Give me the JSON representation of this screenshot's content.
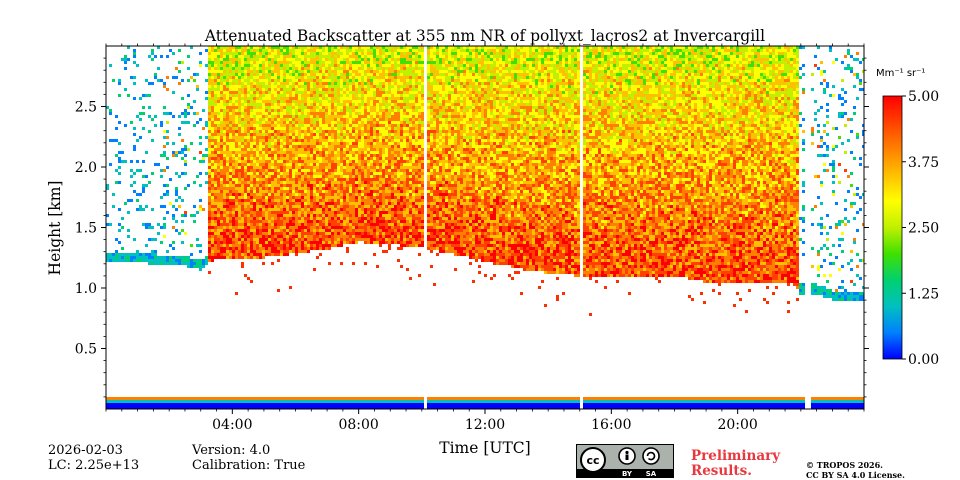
{
  "chart_data": {
    "type": "heatmap",
    "title": "Attenuated Backscatter at 355 nm NR of pollyxt_lacros2 at Invercargill",
    "xlabel": "Time [UTC]",
    "ylabel": "Height [km]",
    "x_unit": "hours UTC",
    "xlim": [
      0,
      24
    ],
    "ylim": [
      0,
      3
    ],
    "x_ticks": [
      {
        "value": 4,
        "label": "04:00"
      },
      {
        "value": 8,
        "label": "08:00"
      },
      {
        "value": 12,
        "label": "12:00"
      },
      {
        "value": 16,
        "label": "16:00"
      },
      {
        "value": 20,
        "label": "20:00"
      }
    ],
    "y_ticks": [
      {
        "value": 0.5,
        "label": "0.5"
      },
      {
        "value": 1.0,
        "label": "1.0"
      },
      {
        "value": 1.5,
        "label": "1.5"
      },
      {
        "value": 2.0,
        "label": "2.0"
      },
      {
        "value": 2.5,
        "label": "2.5"
      }
    ],
    "colorbar": {
      "unit_label": "Mm⁻¹ sr⁻¹",
      "range": [
        0,
        5
      ],
      "ticks": [
        {
          "value": 0,
          "label": "0.00"
        },
        {
          "value": 1.25,
          "label": "1.25"
        },
        {
          "value": 2.5,
          "label": "2.50"
        },
        {
          "value": 3.75,
          "label": "3.75"
        },
        {
          "value": 5,
          "label": "5.00"
        }
      ],
      "colormap": [
        "#0000ff",
        "#0080ff",
        "#00c0c0",
        "#00d070",
        "#40e000",
        "#c0f000",
        "#ffff00",
        "#ffc000",
        "#ff8000",
        "#ff4000",
        "#ff0000"
      ]
    },
    "no_data_gaps_hours": [
      [
        10.05,
        10.15
      ],
      [
        15.0,
        15.1
      ],
      [
        22.15,
        22.3
      ]
    ],
    "signal_base_km": [
      [
        0,
        1.22
      ],
      [
        1.5,
        1.2
      ],
      [
        2.5,
        1.18
      ],
      [
        3.0,
        1.15
      ],
      [
        3.5,
        1.25
      ],
      [
        5,
        1.25
      ],
      [
        7,
        1.32
      ],
      [
        8,
        1.38
      ],
      [
        9,
        1.36
      ],
      [
        10,
        1.33
      ],
      [
        11,
        1.28
      ],
      [
        12,
        1.22
      ],
      [
        13,
        1.17
      ],
      [
        14,
        1.12
      ],
      [
        15,
        1.1
      ],
      [
        16,
        1.08
      ],
      [
        17,
        1.1
      ],
      [
        18,
        1.1
      ],
      [
        19,
        1.05
      ],
      [
        20,
        1.03
      ],
      [
        21,
        1.03
      ],
      [
        21.7,
        1.05
      ],
      [
        22,
        0.95
      ],
      [
        22.5,
        0.95
      ],
      [
        23,
        0.9
      ],
      [
        24,
        0.88
      ]
    ],
    "low_signal_periods_hours": [
      [
        0,
        3.2
      ],
      [
        21.9,
        24
      ]
    ],
    "near_ground_band_km": [
      0.0,
      0.1
    ]
  },
  "footer": {
    "date": "2026-02-03",
    "lc": "LC: 2.25e+13",
    "version": "Version: 4.0",
    "calibration": "Calibration: True",
    "prelim_line1": "Preliminary",
    "prelim_line2": "Results.",
    "copyright_line1": "© TROPOS 2026.",
    "copyright_line2": "CC BY SA 4.0 License.",
    "license_badge": {
      "cc": "cc",
      "by": "BY",
      "sa": "SA"
    }
  }
}
